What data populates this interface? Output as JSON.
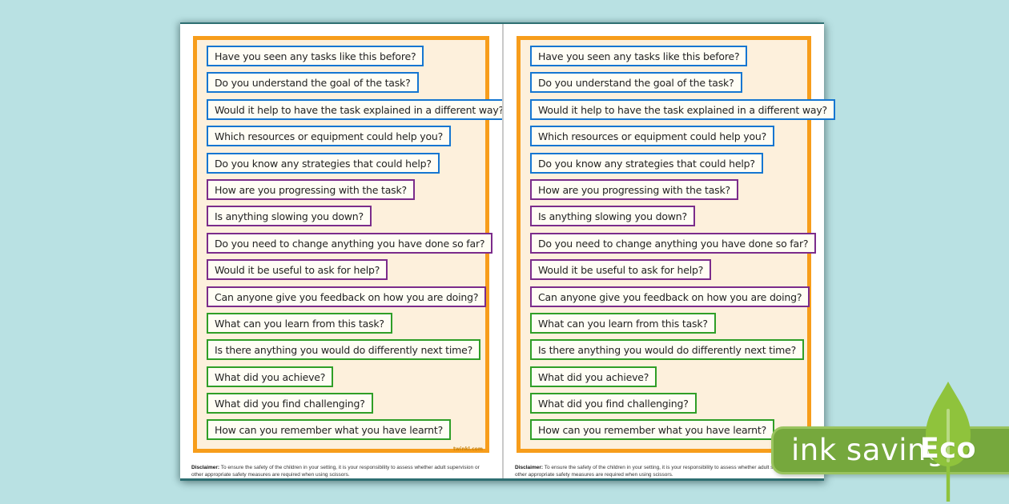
{
  "colors": {
    "bg": "#b9e1e3",
    "frame_orange": "#f79d1b",
    "page_cream": "#fdf0dc",
    "blue": "#1576d1",
    "purple": "#7b2c8b",
    "green": "#2f9e27",
    "banner_green": "#76a83d",
    "banner_border": "#9ac45f",
    "leaf_green": "#8fc33c",
    "leaf_vein": "#b9da84",
    "watermark_orange": "#c8810a"
  },
  "questions": [
    {
      "text": "Have you seen any tasks like this before?",
      "group": "blue"
    },
    {
      "text": "Do you understand the goal of the task?",
      "group": "blue"
    },
    {
      "text": "Would it help to have the task explained in a different way?",
      "group": "blue"
    },
    {
      "text": "Which resources or equipment could help you?",
      "group": "blue"
    },
    {
      "text": "Do you know any strategies that could help?",
      "group": "blue"
    },
    {
      "text": "How are you progressing with the task?",
      "group": "purple"
    },
    {
      "text": "Is anything slowing you down?",
      "group": "purple"
    },
    {
      "text": "Do you need to change anything you have done so far?",
      "group": "purple"
    },
    {
      "text": "Would it be useful to ask for help?",
      "group": "purple"
    },
    {
      "text": "Can anyone give you feedback on how you are doing?",
      "group": "purple"
    },
    {
      "text": "What can you learn from this task?",
      "group": "green"
    },
    {
      "text": "Is there anything you would do differently next time?",
      "group": "green"
    },
    {
      "text": "What did you achieve?",
      "group": "green"
    },
    {
      "text": "What did you find challenging?",
      "group": "green"
    },
    {
      "text": "How can you remember what you have learnt?",
      "group": "green"
    }
  ],
  "disclaimer": {
    "label": "Disclaimer:",
    "text": " To ensure the safety of the children in your setting, it is your responsibility to assess whether adult supervision or other appropriate safety measures are required when using scissors."
  },
  "watermark": "twinkl.com",
  "eco_badge": {
    "text": "ink saving",
    "eco": "Eco"
  }
}
